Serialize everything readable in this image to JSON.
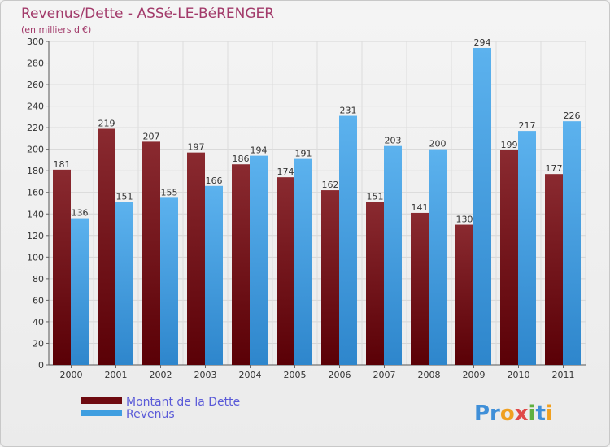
{
  "chart_data": {
    "type": "bar",
    "title": "Revenus/Dette - ASSé-LE-BéRENGER",
    "subtitle": "(en milliers d'€)",
    "categories": [
      "2000",
      "2001",
      "2002",
      "2003",
      "2004",
      "2005",
      "2006",
      "2007",
      "2008",
      "2009",
      "2010",
      "2011"
    ],
    "series": [
      {
        "name": "Montant de la Dette",
        "color": "#6e0a10",
        "values": [
          181,
          219,
          207,
          197,
          186,
          174,
          162,
          151,
          141,
          130,
          199,
          177
        ]
      },
      {
        "name": "Revenus",
        "color": "#3f9ee0",
        "values": [
          136,
          151,
          155,
          166,
          194,
          191,
          231,
          203,
          200,
          294,
          217,
          226
        ]
      }
    ],
    "ylim": [
      0,
      300
    ],
    "yticks": [
      0,
      20,
      40,
      60,
      80,
      100,
      120,
      140,
      160,
      180,
      200,
      220,
      240,
      260,
      280,
      300
    ],
    "grid": true,
    "legend": "bottom-left"
  },
  "logo": {
    "text": "Proxiti"
  }
}
